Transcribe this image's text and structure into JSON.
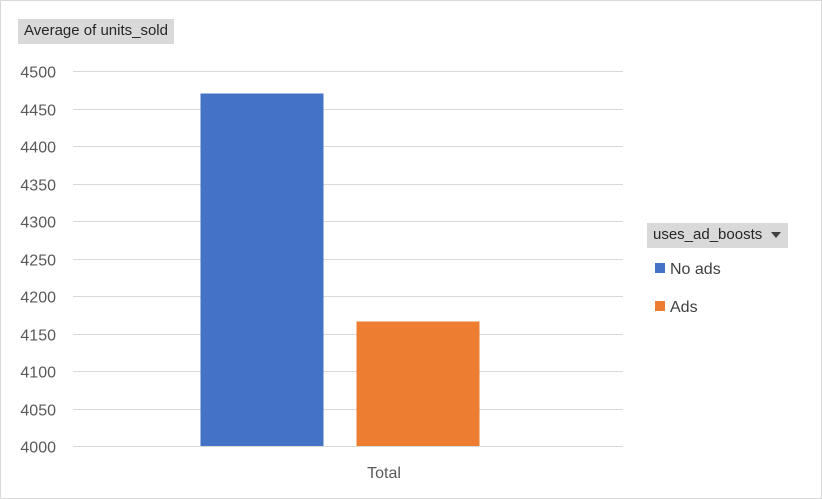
{
  "chart_data": {
    "type": "bar",
    "title": "",
    "value_field": "Average of units_sold",
    "legend_field": "uses_ad_boosts",
    "categories": [
      "Total"
    ],
    "series": [
      {
        "name": "No ads",
        "values": [
          4470
        ],
        "color": "#4472C4"
      },
      {
        "name": "Ads",
        "values": [
          4166
        ],
        "color": "#ED7D31"
      }
    ],
    "ylim": [
      4000,
      4500
    ],
    "yticks": [
      4000,
      4050,
      4100,
      4150,
      4200,
      4250,
      4300,
      4350,
      4400,
      4450,
      4500
    ],
    "grid": true,
    "legend_position": "right",
    "axis_color": "#d9d9d9",
    "text_color": "#595959"
  }
}
